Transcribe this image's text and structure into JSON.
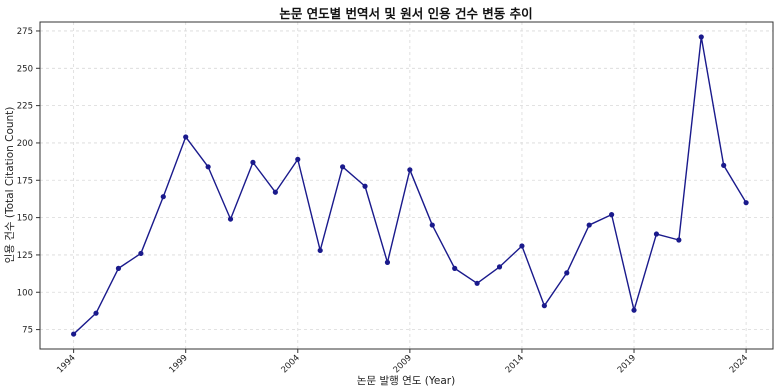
{
  "chart_data": {
    "type": "line",
    "title": "논문 연도별 번역서 및 원서 인용 건수 변동 추이",
    "xlabel": "논문 발행 연도 (Year)",
    "ylabel": "인용 건수 (Total Citation Count)",
    "x": [
      1994,
      1995,
      1996,
      1997,
      1998,
      1999,
      2000,
      2001,
      2002,
      2003,
      2004,
      2005,
      2006,
      2007,
      2008,
      2009,
      2010,
      2011,
      2012,
      2013,
      2014,
      2015,
      2016,
      2017,
      2018,
      2019,
      2020,
      2021,
      2022,
      2023,
      2024
    ],
    "series": [
      {
        "values": [
          72,
          86,
          116,
          126,
          164,
          204,
          184,
          149,
          187,
          167,
          189,
          128,
          184,
          171,
          120,
          182,
          145,
          116,
          106,
          117,
          131,
          91,
          113,
          145,
          152,
          88,
          139,
          135,
          271,
          185,
          160
        ]
      }
    ],
    "xticks": [
      "1994",
      "1999",
      "2004",
      "2009",
      "2014",
      "2019",
      "2024"
    ],
    "yticks": [
      "75",
      "100",
      "125",
      "150",
      "175",
      "200",
      "225",
      "250",
      "275"
    ],
    "xlim": [
      1992.5,
      2025.2
    ],
    "ylim": [
      62,
      281
    ],
    "grid": true,
    "line_color": "#1a1a8c",
    "marker_color": "#1a1a8c"
  }
}
